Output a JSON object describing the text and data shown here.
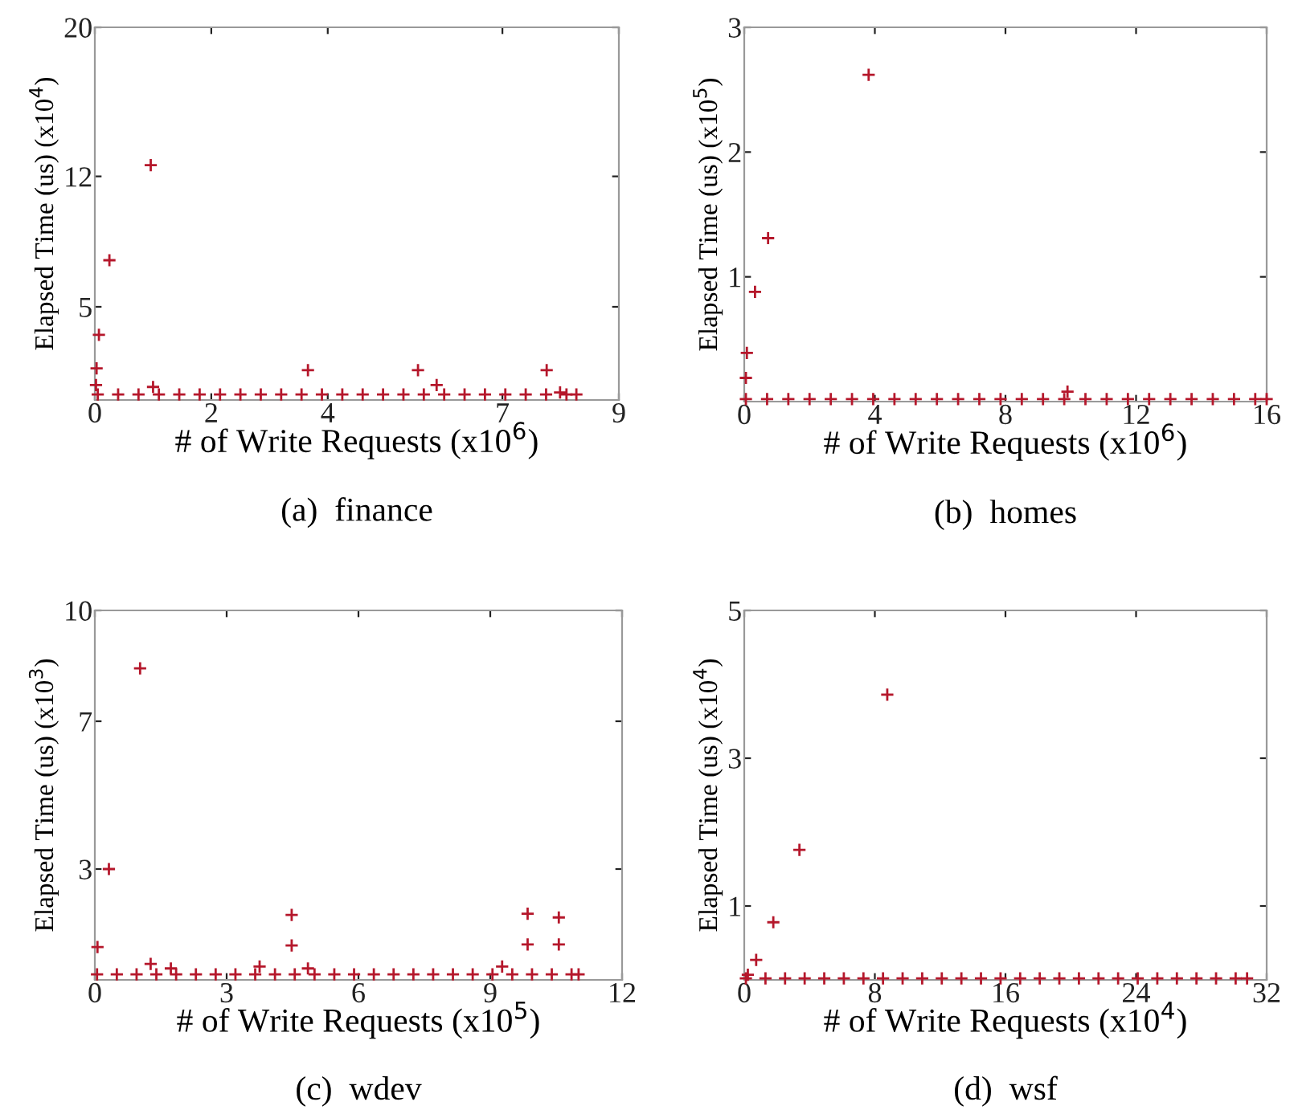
{
  "chart_data": [
    {
      "type": "scatter",
      "title": "(a)  finance",
      "xlabel": "# of Write Requests (x10$^{6}$)",
      "ylabel": "Elapsed Time (us) (x10$^{4}$)",
      "xlim": [
        0,
        9
      ],
      "xticks": [
        0,
        2,
        4,
        7,
        9
      ],
      "ylim": [
        0,
        20
      ],
      "yticks": [
        5,
        12,
        20
      ],
      "marker": "cross",
      "grid": false,
      "series": [
        {
          "color": "#b5172b",
          "x": [
            0.05,
            0.4,
            0.75,
            1.1,
            1.45,
            1.8,
            2.15,
            2.5,
            2.85,
            3.2,
            3.55,
            3.9,
            4.25,
            4.6,
            4.95,
            5.3,
            5.65,
            6.0,
            6.35,
            6.7,
            7.05,
            7.4,
            7.75,
            8.1,
            8.27,
            0.96,
            0.25,
            0.07,
            0.03,
            0.02,
            1.0,
            3.66,
            5.55,
            7.76,
            5.87,
            7.99
          ],
          "values": [
            0.3,
            0.3,
            0.3,
            0.3,
            0.3,
            0.3,
            0.3,
            0.3,
            0.3,
            0.3,
            0.3,
            0.3,
            0.3,
            0.3,
            0.3,
            0.3,
            0.3,
            0.3,
            0.3,
            0.3,
            0.3,
            0.3,
            0.3,
            0.3,
            0.3,
            12.6,
            7.5,
            3.5,
            1.7,
            0.8,
            0.7,
            1.6,
            1.6,
            1.6,
            0.8,
            0.4
          ]
        }
      ]
    },
    {
      "type": "scatter",
      "title": "(b)  homes",
      "xlabel": "# of Write Requests (x10$^{6}$)",
      "ylabel": "Elapsed Time (us) (x10$^{5}$)",
      "xlim": [
        0,
        16
      ],
      "xticks": [
        0,
        4,
        8,
        12,
        16
      ],
      "ylim": [
        0,
        3
      ],
      "yticks": [
        1,
        2,
        3
      ],
      "marker": "cross",
      "grid": false,
      "series": [
        {
          "color": "#b5172b",
          "x": [
            0.05,
            0.7,
            1.35,
            2.0,
            2.65,
            3.3,
            3.95,
            4.6,
            5.25,
            5.9,
            6.55,
            7.2,
            7.85,
            8.5,
            9.15,
            9.8,
            10.45,
            11.1,
            11.75,
            12.4,
            13.05,
            13.7,
            14.35,
            15.0,
            15.65,
            16.0,
            3.81,
            0.73,
            0.33,
            0.08,
            0.05,
            9.9
          ],
          "values": [
            0.02,
            0.02,
            0.02,
            0.02,
            0.02,
            0.02,
            0.02,
            0.02,
            0.02,
            0.02,
            0.02,
            0.02,
            0.02,
            0.02,
            0.02,
            0.02,
            0.02,
            0.02,
            0.02,
            0.02,
            0.02,
            0.02,
            0.02,
            0.02,
            0.02,
            0.02,
            2.62,
            1.31,
            0.88,
            0.39,
            0.19,
            0.08
          ]
        }
      ]
    },
    {
      "type": "scatter",
      "title": "(c)  wdev",
      "xlabel": "# of Write Requests (x10$^{5}$)",
      "ylabel": "Elapsed Time (us) (x10$^{3}$)",
      "xlim": [
        0,
        12
      ],
      "xticks": [
        0,
        3,
        6,
        9,
        12
      ],
      "ylim": [
        0,
        10
      ],
      "yticks": [
        3,
        7,
        10
      ],
      "marker": "cross",
      "grid": false,
      "series": [
        {
          "color": "#b5172b",
          "x": [
            0.05,
            0.5,
            0.95,
            1.4,
            1.85,
            2.3,
            2.75,
            3.2,
            3.65,
            4.1,
            4.55,
            5.0,
            5.45,
            5.9,
            6.35,
            6.8,
            7.25,
            7.7,
            8.15,
            8.6,
            9.05,
            9.5,
            9.95,
            10.4,
            10.85,
            11.01,
            1.03,
            0.32,
            4.48,
            4.48,
            9.85,
            9.85,
            10.56,
            10.56,
            0.06,
            1.27,
            1.73,
            3.75,
            4.85,
            9.27
          ],
          "values": [
            0.15,
            0.15,
            0.15,
            0.15,
            0.15,
            0.15,
            0.15,
            0.15,
            0.15,
            0.15,
            0.15,
            0.15,
            0.15,
            0.15,
            0.15,
            0.15,
            0.15,
            0.15,
            0.15,
            0.15,
            0.15,
            0.15,
            0.15,
            0.15,
            0.15,
            0.15,
            8.43,
            3.0,
            1.76,
            0.93,
            1.79,
            0.96,
            1.69,
            0.96,
            0.89,
            0.43,
            0.31,
            0.36,
            0.31,
            0.36
          ]
        }
      ]
    },
    {
      "type": "scatter",
      "title": "(d)  wsf",
      "xlabel": "# of Write Requests (x10$^{4}$)",
      "ylabel": "Elapsed Time (us) (x10$^{4}$)",
      "xlim": [
        0,
        32
      ],
      "xticks": [
        0,
        8,
        16,
        24,
        32
      ],
      "ylim": [
        0,
        5
      ],
      "yticks": [
        1,
        3,
        5
      ],
      "marker": "cross",
      "grid": false,
      "series": [
        {
          "color": "#b5172b",
          "x": [
            0.1,
            1.3,
            2.5,
            3.7,
            4.9,
            6.1,
            7.3,
            8.5,
            9.7,
            10.9,
            12.1,
            13.3,
            14.5,
            15.7,
            16.9,
            18.1,
            19.3,
            20.5,
            21.7,
            22.9,
            24.1,
            25.3,
            26.5,
            27.7,
            28.9,
            30.1,
            30.8,
            8.76,
            3.38,
            1.78,
            0.73,
            0.22
          ],
          "values": [
            0.02,
            0.02,
            0.02,
            0.02,
            0.02,
            0.02,
            0.02,
            0.02,
            0.02,
            0.02,
            0.02,
            0.02,
            0.02,
            0.02,
            0.02,
            0.02,
            0.02,
            0.02,
            0.02,
            0.02,
            0.02,
            0.02,
            0.02,
            0.02,
            0.02,
            0.02,
            0.02,
            3.86,
            1.76,
            0.78,
            0.27,
            0.07
          ]
        }
      ]
    }
  ]
}
